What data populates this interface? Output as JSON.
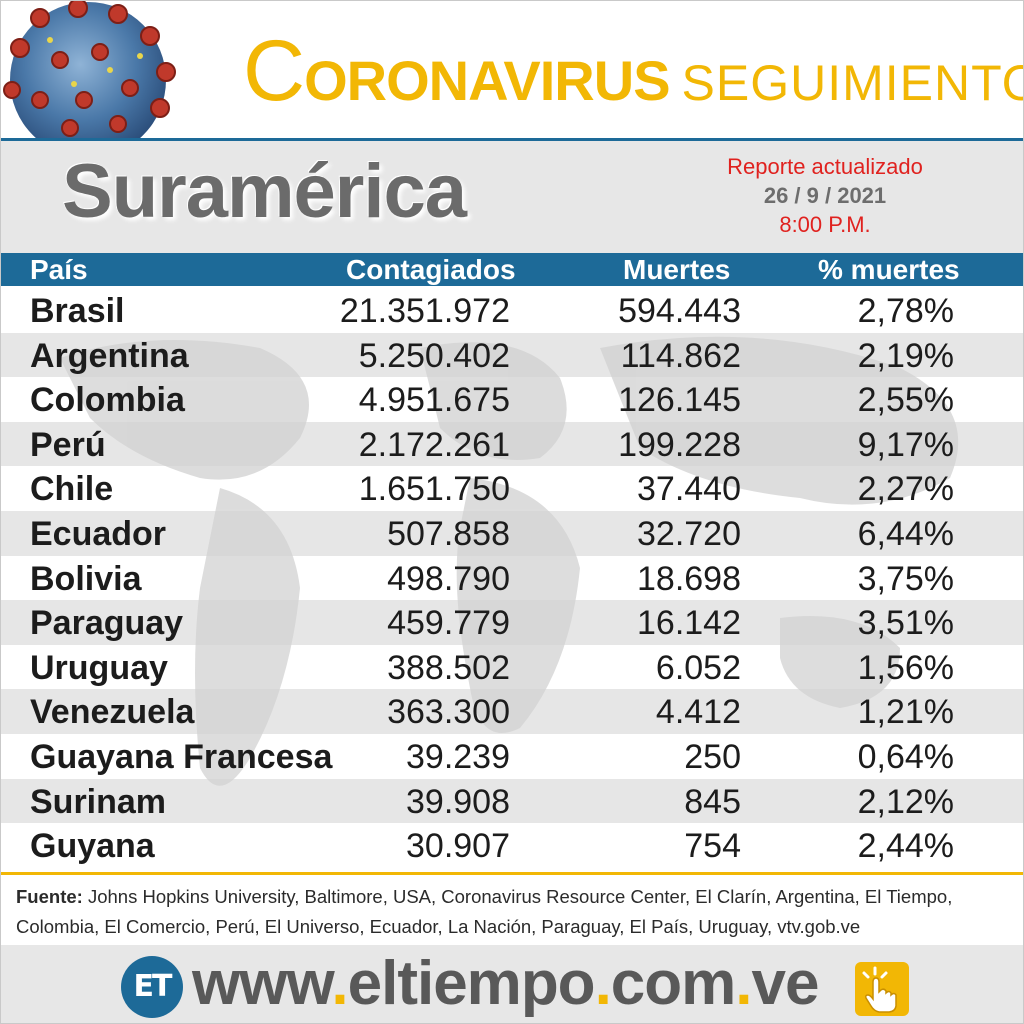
{
  "header": {
    "title_initial": "C",
    "title_rest": "ORONAVIRUS",
    "title_sub": "SEGUIMIENTO",
    "title_color": "#f2b705",
    "accent_blue": "#1d6a98"
  },
  "subheader": {
    "region": "Suramérica",
    "report_label": "Reporte actualizado",
    "report_date": "26  / 9 / 2021",
    "report_time": "8:00 P.M."
  },
  "table": {
    "columns": [
      "País",
      "Contagiados",
      "Muertes",
      "% muertes"
    ],
    "rows": [
      {
        "country": "Brasil",
        "cases": "21.351.972",
        "deaths": "594.443",
        "pct": "2,78%"
      },
      {
        "country": "Argentina",
        "cases": "5.250.402",
        "deaths": "114.862",
        "pct": "2,19%"
      },
      {
        "country": "Colombia",
        "cases": "4.951.675",
        "deaths": "126.145",
        "pct": "2,55%"
      },
      {
        "country": "Perú",
        "cases": "2.172.261",
        "deaths": "199.228",
        "pct": "9,17%"
      },
      {
        "country": "Chile",
        "cases": "1.651.750",
        "deaths": "37.440",
        "pct": "2,27%"
      },
      {
        "country": "Ecuador",
        "cases": "507.858",
        "deaths": "32.720",
        "pct": "6,44%"
      },
      {
        "country": "Bolivia",
        "cases": "498.790",
        "deaths": "18.698",
        "pct": "3,75%"
      },
      {
        "country": "Paraguay",
        "cases": "459.779",
        "deaths": "16.142",
        "pct": "3,51%"
      },
      {
        "country": "Uruguay",
        "cases": "388.502",
        "deaths": "6.052",
        "pct": "1,56%"
      },
      {
        "country": "Venezuela",
        "cases": "363.300",
        "deaths": "4.412",
        "pct": "1,21%"
      },
      {
        "country": "Guayana Francesa",
        "cases": "39.239",
        "deaths": "250",
        "pct": "0,64%"
      },
      {
        "country": "Surinam",
        "cases": "39.908",
        "deaths": "845",
        "pct": "2,12%"
      },
      {
        "country": "Guyana",
        "cases": "30.907",
        "deaths": "754",
        "pct": "2,44%"
      }
    ]
  },
  "source": {
    "label": "Fuente:",
    "text": " Johns Hopkins University, Baltimore, USA, Coronavirus Resource Center,  El Clarín, Argentina, El Tiempo, Colombia, El Comercio, Perú, El Universo, Ecuador, La Nación, Paraguay, El País, Uruguay, vtv.gob.ve"
  },
  "footer": {
    "logo_text": "ET",
    "url_parts": [
      "www",
      ".",
      "eltiempo",
      ".",
      "com",
      ".",
      "ve"
    ],
    "icons": [
      "virus-illustration",
      "hand-click-icon"
    ]
  }
}
